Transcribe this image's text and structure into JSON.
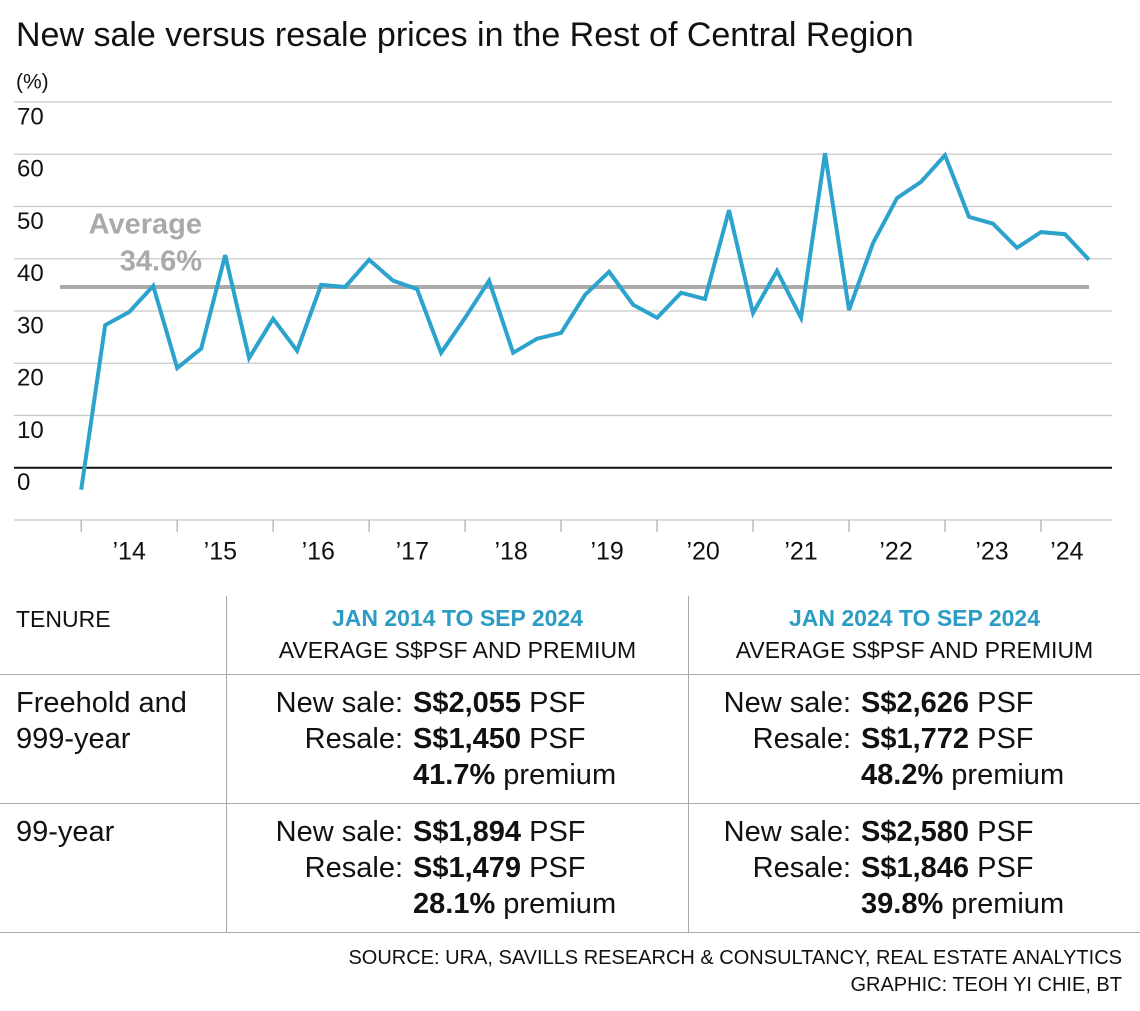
{
  "chart_data": {
    "type": "line",
    "title": "New sale versus resale prices in the Rest of Central Region",
    "y_label": "(%)",
    "x": [
      2014,
      2014.25,
      2014.5,
      2014.75,
      2015,
      2015.25,
      2015.5,
      2015.75,
      2016,
      2016.25,
      2016.5,
      2016.75,
      2017,
      2017.25,
      2017.5,
      2017.75,
      2018,
      2018.25,
      2018.5,
      2018.75,
      2019,
      2019.25,
      2019.5,
      2019.75,
      2020,
      2020.25,
      2020.5,
      2020.75,
      2021,
      2021.25,
      2021.5,
      2021.75,
      2022,
      2022.25,
      2022.5,
      2022.75,
      2023,
      2023.25,
      2023.5,
      2023.75,
      2024,
      2024.25,
      2024.5
    ],
    "values": [
      -4.2,
      27.3,
      29.8,
      34.8,
      19.1,
      22.8,
      40.7,
      21.0,
      28.5,
      22.4,
      35.0,
      34.6,
      39.8,
      35.8,
      34.2,
      22.0,
      28.7,
      35.8,
      22.0,
      24.7,
      25.8,
      33.1,
      37.5,
      31.2,
      28.7,
      33.5,
      32.3,
      49.3,
      29.6,
      37.7,
      28.7,
      60.2,
      30.2,
      43.0,
      51.6,
      54.7,
      59.8,
      48.0,
      46.7,
      42.1,
      45.1,
      44.7,
      39.8
    ],
    "color": "#2ba3cc",
    "xlim": [
      2013.3,
      2024.74
    ],
    "xticks": [
      {
        "value": 2014.5,
        "label": "’14"
      },
      {
        "value": 2015.45,
        "label": "’15"
      },
      {
        "value": 2016.47,
        "label": "’16"
      },
      {
        "value": 2017.45,
        "label": "’17"
      },
      {
        "value": 2018.48,
        "label": "’18"
      },
      {
        "value": 2019.48,
        "label": "’19"
      },
      {
        "value": 2020.48,
        "label": "’20"
      },
      {
        "value": 2021.5,
        "label": "’21"
      },
      {
        "value": 2022.49,
        "label": "’22"
      },
      {
        "value": 2023.49,
        "label": "’23"
      },
      {
        "value": 2024.27,
        "label": "’24"
      }
    ],
    "xtick_marks": [
      2014,
      2015,
      2016,
      2017,
      2018,
      2019,
      2020,
      2021,
      2022,
      2023,
      2024
    ],
    "ylim": [
      -10,
      70
    ],
    "yticks": [
      0,
      10,
      20,
      30,
      40,
      50,
      60,
      70
    ],
    "grid": true,
    "average": {
      "name": "Average",
      "value": 34.6,
      "label": "34.6%",
      "color": "#aaaaaa"
    }
  },
  "table": {
    "header": {
      "tenure": "TENURE",
      "columns": [
        {
          "title": "JAN 2014 TO SEP 2024",
          "subtitle": "AVERAGE S$PSF AND PREMIUM"
        },
        {
          "title": "JAN 2024 TO SEP 2024",
          "subtitle": "AVERAGE S$PSF AND PREMIUM"
        }
      ]
    },
    "rows": [
      {
        "tenure": "Freehold and 999-year",
        "cells": [
          [
            {
              "label": "New sale:",
              "value": "S$2,055",
              "unit": "PSF"
            },
            {
              "label": "Resale:",
              "value": "S$1,450",
              "unit": "PSF"
            },
            {
              "value": "41.7%",
              "unit": "premium"
            }
          ],
          [
            {
              "label": "New sale:",
              "value": "S$2,626",
              "unit": "PSF"
            },
            {
              "label": "Resale:",
              "value": "S$1,772",
              "unit": "PSF"
            },
            {
              "value": "48.2%",
              "unit": "premium"
            }
          ]
        ]
      },
      {
        "tenure": "99-year",
        "cells": [
          [
            {
              "label": "New sale:",
              "value": "S$1,894",
              "unit": "PSF"
            },
            {
              "label": "Resale:",
              "value": "S$1,479",
              "unit": "PSF"
            },
            {
              "value": "28.1%",
              "unit": "premium"
            }
          ],
          [
            {
              "label": "New sale:",
              "value": "S$2,580",
              "unit": "PSF"
            },
            {
              "label": "Resale:",
              "value": "S$1,846",
              "unit": "PSF"
            },
            {
              "value": "39.8%",
              "unit": "premium"
            }
          ]
        ]
      }
    ]
  },
  "footer": {
    "source": "SOURCE: URA, SAVILLS RESEARCH & CONSULTANCY, REAL ESTATE ANALYTICS",
    "credit": "GRAPHIC: TEOH YI CHIE, BT"
  }
}
